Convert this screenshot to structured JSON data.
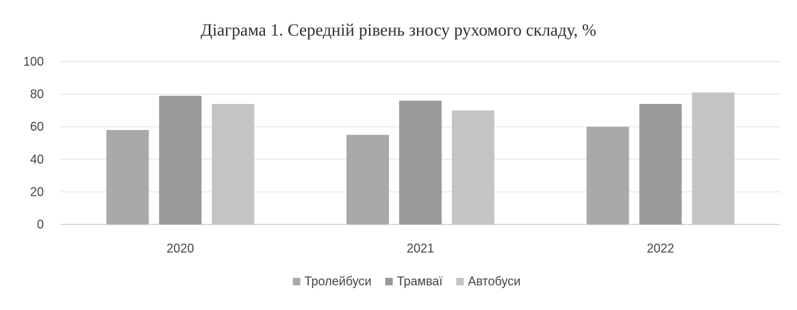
{
  "chart_data": {
    "type": "bar",
    "title": "Діаграма 1. Середній рівень зносу рухомого складу, %",
    "xlabel": "",
    "ylabel": "",
    "categories": [
      "2020",
      "2021",
      "2022"
    ],
    "series": [
      {
        "name": "Тролейбуси",
        "values": [
          58,
          55,
          60
        ],
        "color": "#a9a9a9"
      },
      {
        "name": "Трамваї",
        "values": [
          79,
          76,
          74
        ],
        "color": "#9a9a9a"
      },
      {
        "name": "Автобуси",
        "values": [
          74,
          70,
          81
        ],
        "color": "#c4c4c4"
      }
    ],
    "ylim": [
      0,
      100
    ],
    "yticks": [
      "0",
      "20",
      "40",
      "60",
      "80",
      "100"
    ],
    "grid": true,
    "legend_position": "bottom"
  }
}
